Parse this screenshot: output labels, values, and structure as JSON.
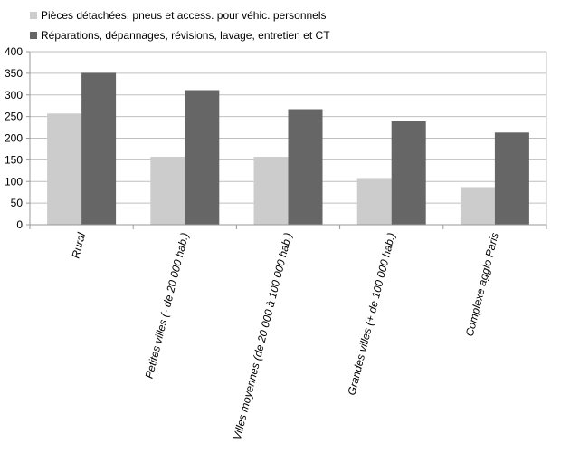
{
  "chart_data": {
    "type": "bar",
    "title": "",
    "xlabel": "",
    "ylabel": "",
    "ylim": [
      0,
      400
    ],
    "yticks": [
      0,
      50,
      100,
      150,
      200,
      250,
      300,
      350,
      400
    ],
    "grid": "horizontal",
    "legend_position": "top-left",
    "categories": [
      "Rural",
      "Petites villes (- de 20 000 hab.)",
      "Villes moyennes (de 20 000 à 100 000 hab.)",
      "Grandes villes (+ de 100 000 hab.)",
      "Complexe agglo Paris"
    ],
    "series": [
      {
        "name": "Pièces détachées, pneus et access. pour véhic. personnels",
        "color": "#cccccc",
        "values": [
          257,
          157,
          157,
          108,
          87
        ]
      },
      {
        "name": "Réparations, dépannages, révisions, lavage, entretien et CT",
        "color": "#666666",
        "values": [
          351,
          311,
          267,
          239,
          213
        ]
      }
    ]
  }
}
